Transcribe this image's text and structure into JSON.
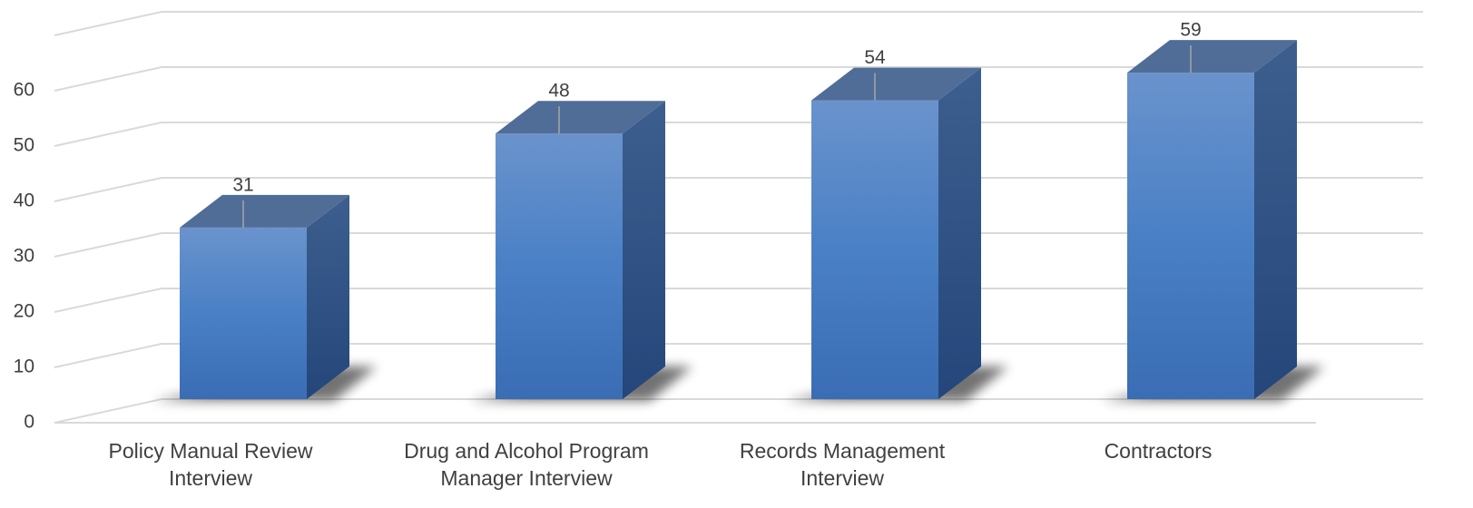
{
  "chart_data": {
    "type": "bar3d",
    "categories": [
      "Policy Manual Review Interview",
      "Drug and Alcohol Program Manager Interview",
      "Records Management Interview",
      "Contractors"
    ],
    "values": [
      31,
      48,
      54,
      59
    ],
    "color": "#4a7fc4",
    "ylim": [
      0,
      70
    ],
    "yticks": [
      0,
      10,
      20,
      30,
      40,
      50,
      60
    ],
    "grid": true
  }
}
